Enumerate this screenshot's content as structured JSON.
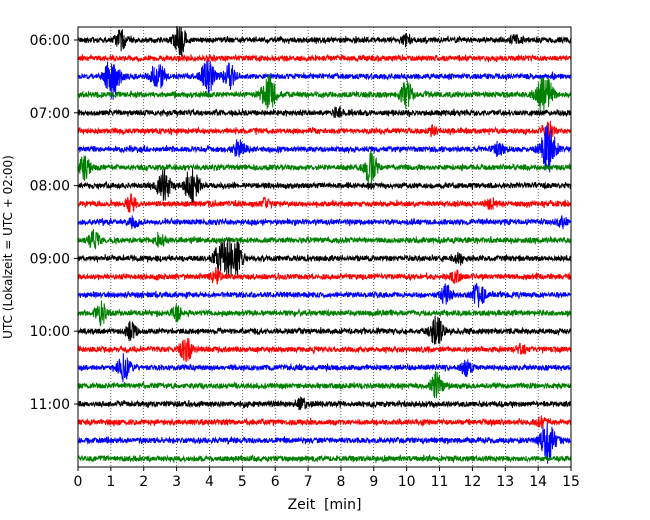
{
  "chart_data": {
    "type": "line",
    "subtype": "helicorder-seismogram",
    "xlabel": "Zeit  [min]",
    "ylabel": "UTC (Lokalzeit = UTC + 02:00)",
    "xlim": [
      0,
      15
    ],
    "x_ticks": [
      "0",
      "1",
      "2",
      "3",
      "4",
      "5",
      "6",
      "7",
      "8",
      "9",
      "10",
      "11",
      "12",
      "13",
      "14",
      "15"
    ],
    "y_tick_labels": [
      "06:00",
      "07:00",
      "08:00",
      "09:00",
      "10:00",
      "11:00"
    ],
    "grid": "vertical dotted at each minute",
    "trace_interval_minutes": 15,
    "trace_color_cycle": [
      "#000000",
      "#ff0000",
      "#0000ff",
      "#008000"
    ],
    "traces": [
      {
        "start": "06:00",
        "color": "#000000",
        "events": [
          {
            "t": 1.3,
            "amp": 1.0
          },
          {
            "t": 3.1,
            "amp": 1.6
          },
          {
            "t": 10.0,
            "amp": 0.6
          },
          {
            "t": 13.3,
            "amp": 0.5
          }
        ]
      },
      {
        "start": "06:15",
        "color": "#ff0000",
        "events": [
          {
            "t": 4.0,
            "amp": 0.3
          }
        ]
      },
      {
        "start": "06:30",
        "color": "#0000ff",
        "events": [
          {
            "t": 1.05,
            "amp": 2.4
          },
          {
            "t": 2.3,
            "amp": 0.8
          },
          {
            "t": 2.5,
            "amp": 1.0
          },
          {
            "t": 3.95,
            "amp": 1.8
          },
          {
            "t": 4.6,
            "amp": 1.4
          }
        ]
      },
      {
        "start": "06:45",
        "color": "#008000",
        "events": [
          {
            "t": 5.8,
            "amp": 2.0
          },
          {
            "t": 10.0,
            "amp": 1.4
          },
          {
            "t": 14.2,
            "amp": 2.4
          }
        ]
      },
      {
        "start": "07:00",
        "color": "#000000",
        "events": [
          {
            "t": 7.9,
            "amp": 0.6
          }
        ]
      },
      {
        "start": "07:15",
        "color": "#ff0000",
        "events": [
          {
            "t": 10.8,
            "amp": 0.5
          },
          {
            "t": 14.3,
            "amp": 1.2
          }
        ]
      },
      {
        "start": "07:30",
        "color": "#0000ff",
        "events": [
          {
            "t": 4.9,
            "amp": 1.2
          },
          {
            "t": 12.8,
            "amp": 0.8
          },
          {
            "t": 14.3,
            "amp": 2.6
          }
        ]
      },
      {
        "start": "07:45",
        "color": "#008000",
        "events": [
          {
            "t": 0.2,
            "amp": 1.2
          },
          {
            "t": 8.9,
            "amp": 1.8
          }
        ]
      },
      {
        "start": "08:00",
        "color": "#000000",
        "events": [
          {
            "t": 2.6,
            "amp": 1.8
          },
          {
            "t": 3.45,
            "amp": 2.0
          }
        ]
      },
      {
        "start": "08:15",
        "color": "#ff0000",
        "events": [
          {
            "t": 1.6,
            "amp": 0.8
          },
          {
            "t": 5.7,
            "amp": 0.5
          },
          {
            "t": 12.6,
            "amp": 0.6
          }
        ]
      },
      {
        "start": "08:30",
        "color": "#0000ff",
        "events": [
          {
            "t": 1.7,
            "amp": 0.6
          },
          {
            "t": 14.7,
            "amp": 0.6
          }
        ]
      },
      {
        "start": "08:45",
        "color": "#008000",
        "events": [
          {
            "t": 0.5,
            "amp": 1.0
          },
          {
            "t": 2.5,
            "amp": 0.8
          }
        ]
      },
      {
        "start": "09:00",
        "color": "#000000",
        "events": [
          {
            "t": 4.3,
            "amp": 1.4
          },
          {
            "t": 4.6,
            "amp": 1.8
          },
          {
            "t": 4.85,
            "amp": 1.4
          },
          {
            "t": 11.6,
            "amp": 0.6
          }
        ]
      },
      {
        "start": "09:15",
        "color": "#ff0000",
        "events": [
          {
            "t": 4.2,
            "amp": 0.8
          },
          {
            "t": 11.5,
            "amp": 0.6
          }
        ]
      },
      {
        "start": "09:30",
        "color": "#0000ff",
        "events": [
          {
            "t": 11.2,
            "amp": 1.0
          },
          {
            "t": 12.2,
            "amp": 1.4
          }
        ]
      },
      {
        "start": "09:45",
        "color": "#008000",
        "events": [
          {
            "t": 0.7,
            "amp": 1.2
          },
          {
            "t": 3.0,
            "amp": 0.8
          }
        ]
      },
      {
        "start": "10:00",
        "color": "#000000",
        "events": [
          {
            "t": 1.6,
            "amp": 0.9
          },
          {
            "t": 10.9,
            "amp": 1.6
          }
        ]
      },
      {
        "start": "10:15",
        "color": "#ff0000",
        "events": [
          {
            "t": 3.3,
            "amp": 1.4
          },
          {
            "t": 13.5,
            "amp": 0.5
          }
        ]
      },
      {
        "start": "10:30",
        "color": "#0000ff",
        "events": [
          {
            "t": 1.4,
            "amp": 1.4
          },
          {
            "t": 11.8,
            "amp": 0.8
          }
        ]
      },
      {
        "start": "10:45",
        "color": "#008000",
        "events": [
          {
            "t": 10.9,
            "amp": 1.4
          }
        ]
      },
      {
        "start": "11:00",
        "color": "#000000",
        "events": [
          {
            "t": 6.8,
            "amp": 0.7
          }
        ]
      },
      {
        "start": "11:15",
        "color": "#ff0000",
        "events": [
          {
            "t": 14.1,
            "amp": 0.5
          }
        ]
      },
      {
        "start": "11:30",
        "color": "#0000ff",
        "events": [
          {
            "t": 14.3,
            "amp": 2.2
          }
        ]
      },
      {
        "start": "11:45",
        "color": "#008000",
        "events": []
      }
    ]
  }
}
